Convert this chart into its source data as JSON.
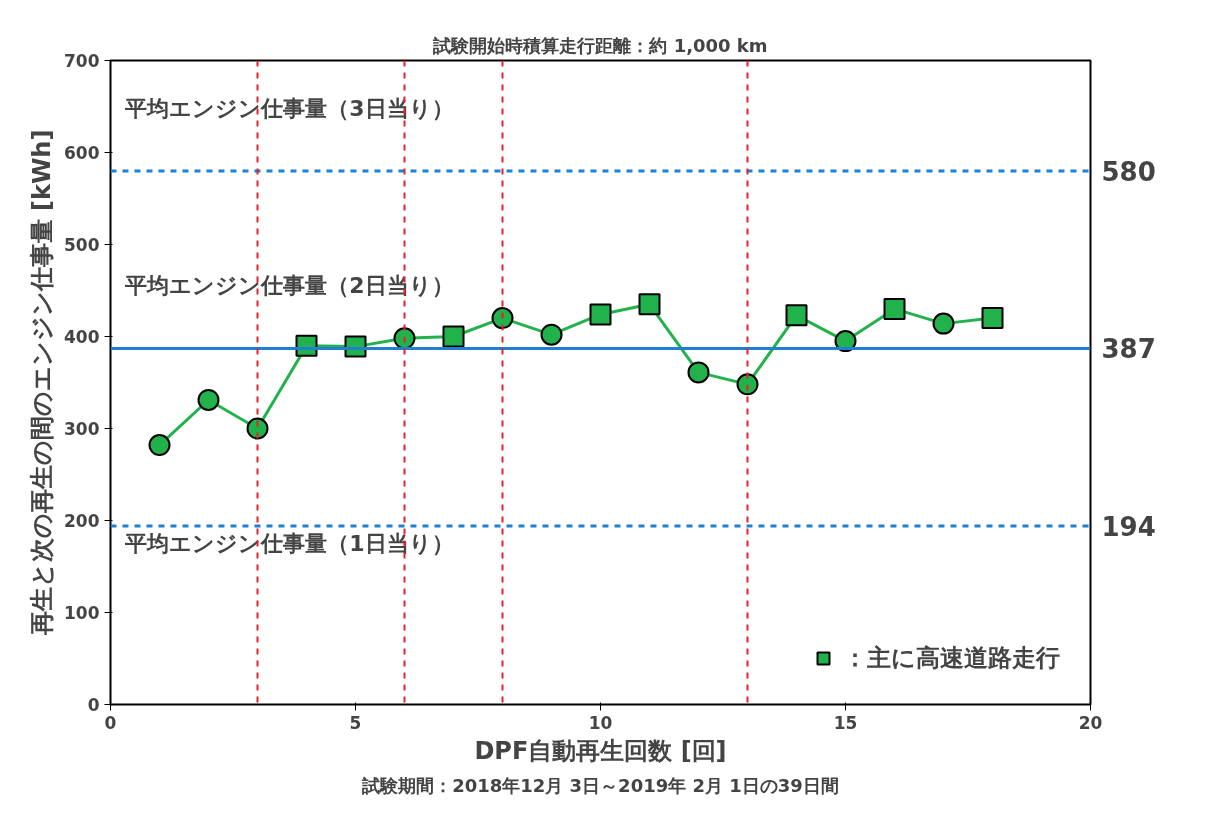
{
  "chart_data": {
    "type": "line",
    "title": "試験開始時積算走行距離：約 1,000 km",
    "xlabel": "DPF自動再生回数 [回]",
    "ylabel": "再生と次の再生の間のエンジン仕事量 [kWh]",
    "annotations": [
      "試験期間：2018年12月 3日～2019年 2月 1日の39日間"
    ],
    "series": [
      {
        "color": "#22b24c",
        "marker": "none",
        "x": [
          1,
          2,
          3,
          4,
          5,
          6,
          7,
          8,
          9,
          10,
          11,
          12,
          13,
          14,
          15,
          16,
          17,
          18
        ],
        "values": [
          282,
          331,
          300,
          390,
          389,
          398,
          400,
          420,
          402,
          424,
          435,
          361,
          348,
          423,
          395,
          430,
          414,
          420
        ]
      },
      {
        "type": "scatter",
        "color": "#22b24c",
        "marker": "circle",
        "x": [
          1,
          2,
          3,
          6,
          8,
          9,
          12,
          13,
          15,
          17
        ],
        "values": [
          282,
          331,
          300,
          398,
          420,
          402,
          361,
          348,
          395,
          414
        ]
      },
      {
        "type": "scatter",
        "name": "：主に高速道路走行",
        "color": "#22b24c",
        "marker": "square",
        "x": [
          4,
          5,
          7,
          10,
          11,
          14,
          16,
          18
        ],
        "values": [
          390,
          389,
          400,
          424,
          435,
          423,
          430,
          420
        ]
      }
    ],
    "xlim": [
      0,
      20
    ],
    "xticks": [
      0,
      5,
      10,
      15,
      20
    ],
    "ylim": [
      0,
      700
    ],
    "yticks": [
      0,
      100,
      200,
      300,
      400,
      500,
      600,
      700
    ],
    "y2lim": [
      0,
      700
    ],
    "y2ticks": [
      194,
      387,
      580
    ],
    "ref_lines": [
      {
        "axis": "y",
        "value": 580,
        "label": "平均エンジン仕事量（3日当り）",
        "color": "#1f7fd0",
        "line_style": "dashed"
      },
      {
        "axis": "y",
        "value": 387,
        "label": "平均エンジン仕事量（2日当り）",
        "color": "#1f7fd0",
        "line_style": "solid"
      },
      {
        "axis": "y",
        "value": 194,
        "label": "平均エンジン仕事量（1日当り）",
        "color": "#1f7fd0",
        "line_style": "dashed"
      },
      {
        "axis": "x",
        "value": 3,
        "color": "#e8202a",
        "line_style": "dashed"
      },
      {
        "axis": "x",
        "value": 6,
        "color": "#e8202a",
        "line_style": "dashed"
      },
      {
        "axis": "x",
        "value": 8,
        "color": "#e8202a",
        "line_style": "dashed"
      },
      {
        "axis": "x",
        "value": 13,
        "color": "#e8202a",
        "line_style": "dashed"
      }
    ],
    "grid": false,
    "legend": "bottom right"
  }
}
